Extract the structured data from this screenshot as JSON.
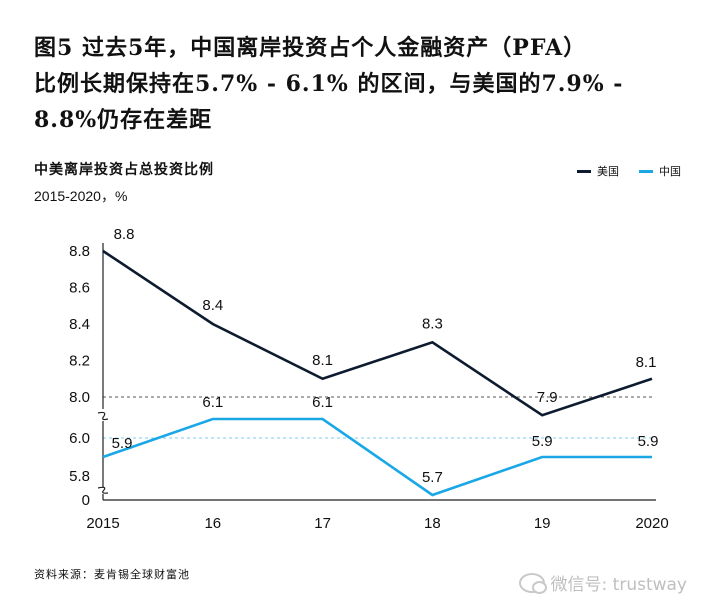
{
  "headline": {
    "line1": "图5 过去5年，中国离岸投资占个人金融资产（PFA）",
    "line2": "比例长期保持在5.7% - 6.1% 的区间，与美国的7.9% -",
    "line3": "8.8%仍存在差距"
  },
  "source": "资料来源：麦肯锡全球财富池",
  "watermark": "微信号: trustway",
  "colors": {
    "us": "#0d1b2e",
    "china": "#1aa7e6",
    "axis": "#222222",
    "ref_us": "#555555",
    "ref_cn": "#7ccbf0"
  },
  "chart_data": {
    "type": "line",
    "title": "中美离岸投资占总投资比例",
    "subtitle": "2015-2020，%",
    "legend_position": "top-right",
    "categories": [
      "2015",
      "16",
      "17",
      "18",
      "19",
      "2020"
    ],
    "series": [
      {
        "name": "美国",
        "values": [
          8.8,
          8.4,
          8.1,
          8.3,
          7.9,
          8.1
        ],
        "labels": [
          "8.8",
          "8.4",
          "8.1",
          "8.3",
          "7.9",
          "8.1"
        ]
      },
      {
        "name": "中国",
        "values": [
          5.9,
          6.1,
          6.1,
          5.7,
          5.9,
          5.9
        ],
        "labels": [
          "5.9",
          "6.1",
          "6.1",
          "5.7",
          "5.9",
          "5.9"
        ]
      }
    ],
    "y_upper": {
      "range": [
        7.9,
        8.8
      ],
      "ticks": [
        "8.8",
        "8.6",
        "8.4",
        "8.2",
        "8.0"
      ],
      "reference": 8.0
    },
    "y_lower": {
      "range": [
        5.7,
        6.0
      ],
      "ticks": [
        "6.0",
        "5.8"
      ],
      "reference": 6.0
    },
    "y_zero_tick": "0",
    "axis_break": true,
    "grid": false
  }
}
